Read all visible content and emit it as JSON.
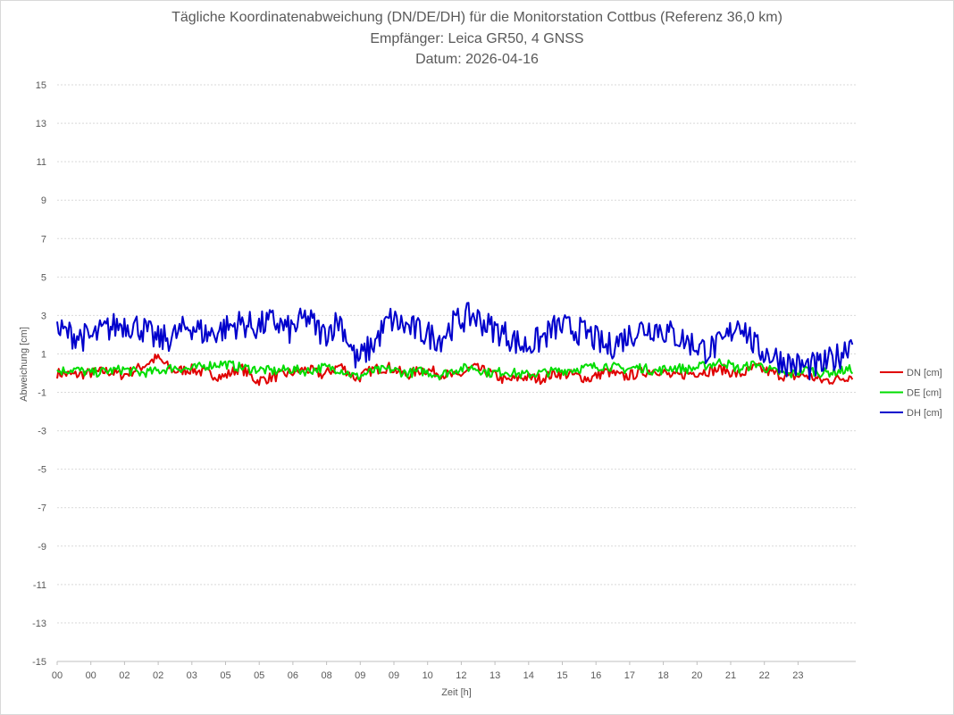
{
  "chart_data": {
    "type": "line",
    "title": "Tägliche Koordinatenabweichung (DN/DE/DH) für die Monitorstation Cottbus (Referenz 36,0 km)",
    "subtitle": "Empfänger: Leica GR50, 4 GNSS",
    "date_line": "Datum: 2026-04-16",
    "xlabel": "Zeit [h]",
    "ylabel": "Abweichung [cm]",
    "xlim": [
      0,
      24
    ],
    "ylim": [
      -15,
      15
    ],
    "y_ticks": [
      15,
      13,
      11,
      9,
      7,
      5,
      3,
      1,
      -1,
      -3,
      -5,
      -7,
      -9,
      -11,
      -13,
      -15
    ],
    "x_tick_labels": [
      "00",
      "00",
      "02",
      "02",
      "03",
      "05",
      "05",
      "06",
      "08",
      "09",
      "09",
      "10",
      "12",
      "13",
      "14",
      "15",
      "16",
      "17",
      "18",
      "20",
      "21",
      "22",
      "23"
    ],
    "grid": "horizontal dotted",
    "legend_position": "right",
    "colors": {
      "DN": "#e00000",
      "DE": "#00dd00",
      "DH": "#0000cc"
    },
    "x": [
      0.0,
      0.5,
      1.0,
      1.5,
      2.0,
      2.5,
      3.0,
      3.5,
      4.0,
      4.5,
      5.0,
      5.5,
      6.0,
      6.5,
      7.0,
      7.5,
      8.0,
      8.5,
      9.0,
      9.5,
      10.0,
      10.5,
      11.0,
      11.5,
      12.0,
      12.5,
      13.0,
      13.5,
      14.0,
      14.5,
      15.0,
      15.5,
      16.0,
      16.5,
      17.0,
      17.5,
      18.0,
      18.5,
      19.0,
      19.5,
      20.0,
      20.5,
      21.0,
      21.5,
      22.0,
      22.5,
      23.0,
      23.5,
      23.9
    ],
    "series": [
      {
        "name": "DN [cm]",
        "values": [
          0.0,
          -0.1,
          0.0,
          0.1,
          -0.1,
          0.3,
          0.8,
          0.1,
          0.2,
          0.0,
          -0.2,
          0.3,
          -0.4,
          -0.2,
          0.0,
          0.2,
          -0.1,
          0.4,
          -0.3,
          0.2,
          0.3,
          -0.1,
          0.2,
          0.0,
          -0.2,
          0.3,
          0.0,
          -0.4,
          -0.2,
          -0.3,
          0.0,
          -0.1,
          -0.3,
          0.1,
          -0.2,
          0.0,
          0.2,
          -0.2,
          0.0,
          0.1,
          0.2,
          -0.1,
          0.3,
          0.0,
          -0.2,
          -0.1,
          -0.4,
          -0.3,
          -0.1
        ]
      },
      {
        "name": "DE [cm]",
        "values": [
          0.1,
          0.2,
          0.0,
          0.1,
          0.2,
          0.0,
          0.1,
          0.3,
          0.2,
          0.4,
          0.5,
          0.3,
          0.2,
          0.1,
          0.2,
          0.1,
          0.3,
          0.2,
          -0.2,
          0.1,
          0.2,
          0.0,
          0.1,
          -0.1,
          0.2,
          0.3,
          0.0,
          0.1,
          -0.1,
          0.0,
          0.1,
          0.2,
          0.3,
          0.4,
          0.2,
          0.3,
          0.1,
          0.3,
          0.2,
          0.4,
          0.6,
          0.2,
          0.5,
          0.1,
          -0.1,
          0.2,
          0.0,
          0.1,
          0.2
        ]
      },
      {
        "name": "DH [cm]",
        "values": [
          2.2,
          2.0,
          1.8,
          2.3,
          2.6,
          2.4,
          1.7,
          1.9,
          2.5,
          2.0,
          2.3,
          2.6,
          2.4,
          2.7,
          2.2,
          2.9,
          2.0,
          2.8,
          0.6,
          1.5,
          2.8,
          2.4,
          2.1,
          1.8,
          2.7,
          3.0,
          2.4,
          2.0,
          1.4,
          1.7,
          2.4,
          2.3,
          2.0,
          1.3,
          1.8,
          2.3,
          2.4,
          2.0,
          1.6,
          1.2,
          1.5,
          2.8,
          1.3,
          0.9,
          0.5,
          0.3,
          0.4,
          0.9,
          1.8
        ]
      }
    ]
  }
}
